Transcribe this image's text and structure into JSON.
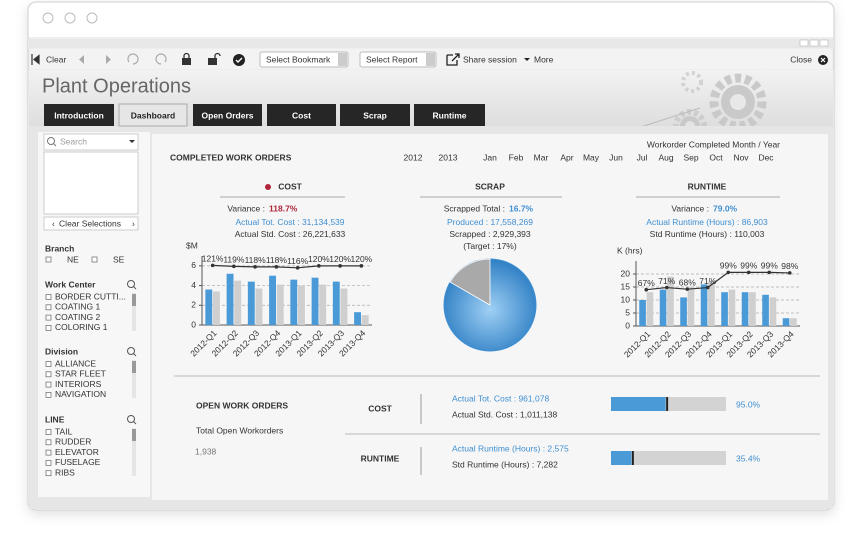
{
  "toolbar": {
    "clear": "Clear",
    "bookmark": "Select Bookmark",
    "report": "Select Report",
    "share": "Share session",
    "more": "More",
    "close": "Close"
  },
  "header": {
    "title": "Plant Operations"
  },
  "tabs": [
    "Introduction",
    "Dashboard",
    "Open Orders",
    "Cost",
    "Scrap",
    "Runtime"
  ],
  "sidebar": {
    "search": "Search",
    "clear_selections": "Clear Selections",
    "filters": [
      {
        "label": "Branch",
        "items": [
          "NE",
          "SE"
        ]
      },
      {
        "label": "Work Center",
        "items": [
          "BORDER CUTTI...",
          "COATING 1",
          "COATING 2",
          "COLORING 1"
        ]
      },
      {
        "label": "Division",
        "items": [
          "ALLIANCE",
          "STAR FLEET",
          "INTERIORS",
          "NAVIGATION"
        ]
      },
      {
        "label": "LINE",
        "items": [
          "TAIL",
          "RUDDER",
          "ELEVATOR",
          "FUSELAGE",
          "RIBS"
        ]
      }
    ]
  },
  "dashboard": {
    "title": "COMPLETED WORK ORDERS",
    "period_label": "Workorder Completed Month / Year",
    "years": [
      "2012",
      "2013"
    ],
    "months": [
      "Jan",
      "Feb",
      "Mar",
      "Apr",
      "May",
      "Jun",
      "Jul",
      "Aug",
      "Sep",
      "Oct",
      "Nov",
      "Dec"
    ]
  },
  "kpis": [
    {
      "title": "COST",
      "variance_label": "Variance :",
      "variance": "118.7%",
      "lines": [
        "Actual Tot. Cost : 31,134,539",
        "Actual Std. Cost : 26,221,633"
      ]
    },
    {
      "title": "SCRAP",
      "variance_label": "Scrapped Total :",
      "lines": [
        "Produced : 17,558,269",
        "Scrapped : 2,929,393",
        "(Target : 17%)"
      ]
    },
    {
      "title": "RUNTIME",
      "variance_label": "Variance :",
      "variance": "79.0%",
      "lines": [
        "Actual Runtime (Hours) : 86,903",
        "Std Runtime (Hours) : 110,003"
      ]
    }
  ],
  "chart_data": [
    {
      "type": "bar",
      "ylabel": "$M",
      "categories": [
        "2012-Q1",
        "2012-Q2",
        "2012-Q3",
        "2012-Q4",
        "2013-Q1",
        "2013-Q2",
        "2013-Q3",
        "2013-Q4"
      ],
      "series": [
        {
          "color": "#4a9ad8",
          "values": [
            3.6,
            5.2,
            4.4,
            5.0,
            4.6,
            4.8,
            4.4,
            1.3
          ]
        },
        {
          "color": "#cfcfcf",
          "values": [
            3.4,
            4.5,
            3.7,
            4.1,
            4.0,
            4.1,
            3.7,
            1.0
          ]
        },
        {
          "color": "#333333",
          "axis": "y2",
          "values": [
            121,
            119,
            118,
            118,
            116,
            120,
            120,
            120
          ],
          "value_labels": [
            "121%",
            "119%",
            "118%",
            "118%",
            "116%",
            "120%",
            "120%",
            "120%"
          ]
        }
      ],
      "ylim": [
        0,
        7
      ],
      "yticks": [
        0,
        2,
        4,
        6
      ],
      "y2lim": [
        0,
        140
      ],
      "grid": true
    },
    {
      "type": "pie",
      "values": [
        16.7
      ],
      "value_labels": [
        "16.7%"
      ],
      "colors": [
        "#a9a9a9"
      ],
      "base_color": "#3f8fd2"
    },
    {
      "type": "bar",
      "ylabel": "K (hrs)",
      "categories": [
        "2012-Q1",
        "2012-Q2",
        "2012-Q3",
        "2012-Q4",
        "2013-Q1",
        "2013-Q2",
        "2013-Q3",
        "2013-Q4"
      ],
      "series": [
        {
          "color": "#4a9ad8",
          "values": [
            10,
            14,
            11,
            16,
            13,
            13,
            12,
            3
          ]
        },
        {
          "color": "#cfcfcf",
          "values": [
            13,
            19,
            15,
            17,
            14,
            13,
            11,
            3
          ]
        },
        {
          "color": "#333333",
          "axis": "y2",
          "values": [
            67,
            71,
            68,
            71,
            99,
            99,
            99,
            98
          ],
          "value_labels": [
            "67%",
            "71%",
            "68%",
            "71%",
            "99%",
            "99%",
            "99%",
            "98%"
          ]
        }
      ],
      "ylim": [
        0,
        25
      ],
      "yticks": [
        0,
        5,
        10,
        15,
        20
      ],
      "y2lim": [
        0,
        120
      ],
      "grid": true
    },
    {
      "type": "bullet",
      "values": [
        95.0,
        35.4
      ],
      "value_labels": [
        "95.0%",
        "35.4%"
      ],
      "xlim": [
        0,
        200
      ],
      "color": "#4a9ad8",
      "track_color": "#d3d3d3"
    }
  ],
  "open_orders": {
    "title": "OPEN WORK ORDERS",
    "subtitle": "Total Open Workorders",
    "total": "1,938",
    "rows": [
      {
        "label": "COST",
        "lines": [
          "Actual Tot. Cost : 961,078",
          "Actual Std. Cost : 1,011,138"
        ]
      },
      {
        "label": "RUNTIME",
        "lines": [
          "Actual Runtime (Hours) : 2,575",
          "Std Runtime (Hours) : 7,282"
        ]
      }
    ]
  }
}
